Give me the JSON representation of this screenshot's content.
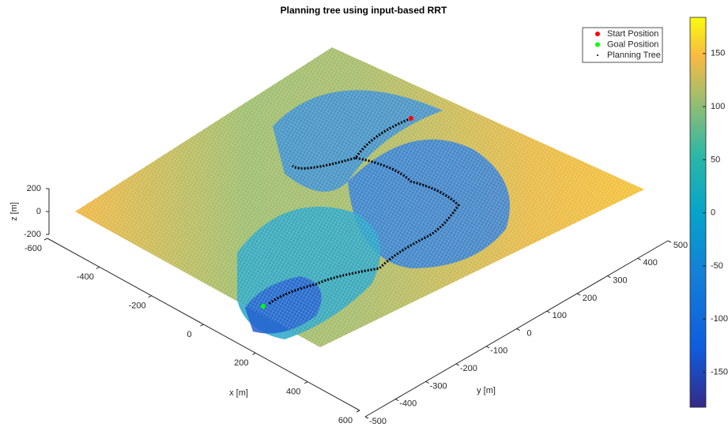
{
  "chart_data": {
    "type": "surface3d",
    "title": "Planning tree using input-based RRT",
    "xlabel": "x [m]",
    "ylabel": "y [m]",
    "zlabel": "z [m]",
    "xlim": [
      -600,
      600
    ],
    "xticks": [
      -600,
      -400,
      -200,
      0,
      200,
      400,
      600
    ],
    "ylim": [
      -500,
      500
    ],
    "yticks": [
      -500,
      -400,
      -300,
      -200,
      -100,
      0,
      100,
      200,
      300,
      400,
      500
    ],
    "zlim": [
      -200,
      200
    ],
    "zticks": [
      -200,
      0,
      200
    ],
    "clim": [
      -183,
      184
    ],
    "cticks": [
      -150,
      -100,
      -50,
      0,
      50,
      100,
      150
    ],
    "legend_position": "northeast",
    "series": [
      {
        "name": "Start Position",
        "color": "#ff0000"
      },
      {
        "name": "Goal Position",
        "color": "#00ff00"
      },
      {
        "name": "Planning Tree",
        "color": "#000000"
      }
    ]
  }
}
